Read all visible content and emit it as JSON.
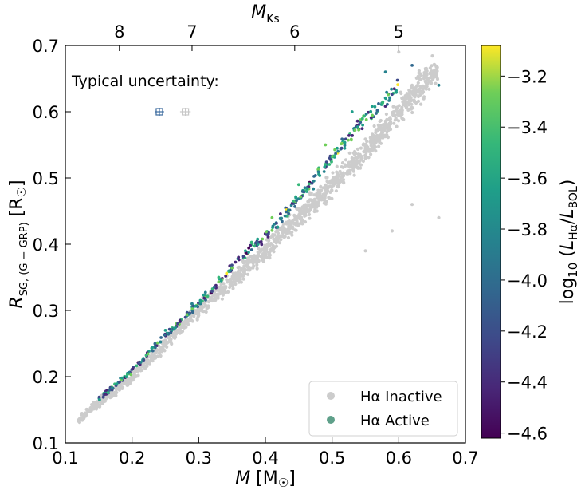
{
  "chart_data": {
    "type": "scatter",
    "xlabel": "M [M☉]",
    "ylabel": "R_SG,(G−GRP) [R☉]",
    "top_xlabel": "M_Ks",
    "colorbar_label": "log10 (LHα/LBOL)",
    "xlim": [
      0.1,
      0.7
    ],
    "ylim": [
      0.1,
      0.7
    ],
    "x_ticks": [
      "0.1",
      "0.2",
      "0.3",
      "0.4",
      "0.5",
      "0.6",
      "0.7"
    ],
    "y_ticks": [
      "0.1",
      "0.2",
      "0.3",
      "0.4",
      "0.5",
      "0.6",
      "0.7"
    ],
    "top_ticks": [
      {
        "label": "8",
        "mass": 0.181
      },
      {
        "label": "7",
        "mass": 0.29
      },
      {
        "label": "6",
        "mass": 0.444
      },
      {
        "label": "5",
        "mass": 0.6
      }
    ],
    "colorbar": {
      "range": [
        -4.62,
        -3.08
      ],
      "ticks": [
        "−3.2",
        "−3.4",
        "−3.6",
        "−3.8",
        "−4.0",
        "−4.2",
        "−4.4",
        "−4.6"
      ],
      "tick_values": [
        -3.2,
        -3.4,
        -3.6,
        -3.8,
        -4.0,
        -4.2,
        -4.4,
        -4.6
      ],
      "colormap": "viridis"
    },
    "annotation": "Typical uncertainty:",
    "uncertainty_markers": [
      {
        "x": 0.241,
        "y": 0.6,
        "xerr": 0.007,
        "yerr": 0.006,
        "color": "#3b6a9e"
      },
      {
        "x": 0.28,
        "y": 0.6,
        "xerr": 0.008,
        "yerr": 0.006,
        "color": "#c8c8c8"
      }
    ],
    "legend": {
      "position": "lower-right",
      "entries": [
        {
          "label": "Hα Inactive",
          "color": "#cccccc"
        },
        {
          "label": "Hα Active",
          "color": "#5fa08a"
        }
      ]
    },
    "series": [
      {
        "name": "Hα Inactive",
        "color": "#cccccc",
        "trend": [
          [
            0.12,
            0.135
          ],
          [
            0.15,
            0.16
          ],
          [
            0.2,
            0.2
          ],
          [
            0.25,
            0.25
          ],
          [
            0.3,
            0.3
          ],
          [
            0.35,
            0.345
          ],
          [
            0.4,
            0.39
          ],
          [
            0.45,
            0.44
          ],
          [
            0.5,
            0.49
          ],
          [
            0.55,
            0.54
          ],
          [
            0.6,
            0.6
          ],
          [
            0.65,
            0.66
          ]
        ],
        "points": [
          [
            0.12,
            0.133
          ],
          [
            0.13,
            0.145
          ],
          [
            0.17,
            0.17
          ],
          [
            0.22,
            0.225
          ],
          [
            0.27,
            0.275
          ],
          [
            0.33,
            0.33
          ],
          [
            0.38,
            0.375
          ],
          [
            0.43,
            0.42
          ],
          [
            0.48,
            0.47
          ],
          [
            0.53,
            0.53
          ],
          [
            0.58,
            0.58
          ],
          [
            0.62,
            0.64
          ],
          [
            0.64,
            0.665
          ],
          [
            0.6,
            0.69
          ],
          [
            0.66,
            0.44
          ],
          [
            0.62,
            0.46
          ],
          [
            0.59,
            0.42
          ],
          [
            0.55,
            0.39
          ]
        ]
      },
      {
        "name": "Hα Active",
        "trend": [
          [
            0.15,
            0.165
          ],
          [
            0.2,
            0.21
          ],
          [
            0.25,
            0.262
          ],
          [
            0.3,
            0.31
          ],
          [
            0.35,
            0.365
          ],
          [
            0.4,
            0.415
          ],
          [
            0.45,
            0.47
          ],
          [
            0.5,
            0.53
          ],
          [
            0.55,
            0.59
          ],
          [
            0.6,
            0.64
          ]
        ],
        "points": [
          {
            "x": 0.17,
            "y": 0.18,
            "c": -4.3
          },
          {
            "x": 0.21,
            "y": 0.22,
            "c": -4.2
          },
          {
            "x": 0.25,
            "y": 0.27,
            "c": -3.6
          },
          {
            "x": 0.29,
            "y": 0.31,
            "c": -3.9
          },
          {
            "x": 0.33,
            "y": 0.35,
            "c": -3.4
          },
          {
            "x": 0.37,
            "y": 0.39,
            "c": -3.7
          },
          {
            "x": 0.41,
            "y": 0.44,
            "c": -3.3
          },
          {
            "x": 0.45,
            "y": 0.49,
            "c": -3.5
          },
          {
            "x": 0.49,
            "y": 0.55,
            "c": -3.2
          },
          {
            "x": 0.53,
            "y": 0.6,
            "c": -3.6
          },
          {
            "x": 0.58,
            "y": 0.66,
            "c": -3.9
          },
          {
            "x": 0.66,
            "y": 0.64,
            "c": -3.8
          },
          {
            "x": 0.62,
            "y": 0.67,
            "c": -4.0
          }
        ]
      }
    ]
  }
}
